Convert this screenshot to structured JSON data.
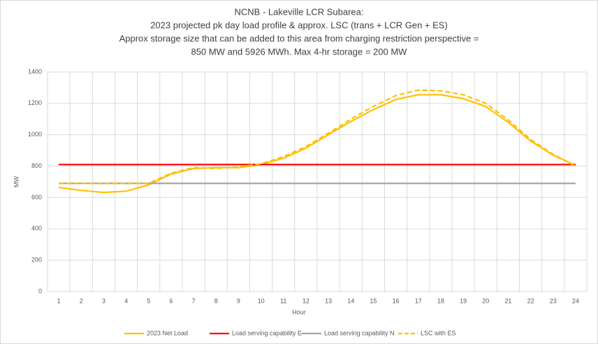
{
  "chart_data": {
    "type": "line",
    "title": [
      "NCNB - Lakeville LCR Subarea:",
      "2023 projected pk day load profile & approx. LSC (trans + LCR Gen + ES)",
      "Approx storage size that can be added to this area from charging restriction perspective =",
      "850 MW and 5926 MWh. Max 4-hr storage = 200 MW"
    ],
    "x_label": "Hour",
    "y_label": "MW",
    "categories": [
      "1",
      "2",
      "3",
      "4",
      "5",
      "6",
      "7",
      "8",
      "9",
      "10",
      "11",
      "12",
      "13",
      "14",
      "15",
      "16",
      "17",
      "18",
      "19",
      "20",
      "21",
      "22",
      "23",
      "24"
    ],
    "series": [
      {
        "name": "2023 Net Load",
        "color": "#FFC000",
        "dashed": false,
        "values": [
          664,
          645,
          632,
          640,
          680,
          750,
          785,
          790,
          790,
          810,
          850,
          915,
          1000,
          1085,
          1160,
          1225,
          1255,
          1255,
          1230,
          1180,
          1080,
          960,
          870,
          805
        ]
      },
      {
        "name": "Load serving capability E",
        "color": "#FF0000",
        "dashed": false,
        "values": [
          810,
          810,
          810,
          810,
          810,
          810,
          810,
          810,
          810,
          810,
          810,
          810,
          810,
          810,
          810,
          810,
          810,
          810,
          810,
          810,
          810,
          810,
          810,
          810
        ]
      },
      {
        "name": "Load serving capability N",
        "color": "#A5A5A5",
        "dashed": false,
        "values": [
          690,
          690,
          690,
          690,
          690,
          690,
          690,
          690,
          690,
          690,
          690,
          690,
          690,
          690,
          690,
          690,
          690,
          690,
          690,
          690,
          690,
          690,
          690,
          690
        ]
      },
      {
        "name": "LSC with ES",
        "color": "#FFC000",
        "dashed": true,
        "values": [
          690,
          690,
          690,
          690,
          690,
          755,
          790,
          785,
          795,
          815,
          860,
          925,
          1010,
          1100,
          1180,
          1250,
          1285,
          1280,
          1255,
          1200,
          1095,
          970,
          875,
          800
        ]
      }
    ],
    "ylim": [
      0,
      1400
    ],
    "yticks": [
      0,
      200,
      400,
      600,
      800,
      1000,
      1200,
      1400
    ],
    "grid": true,
    "legend": "bottom"
  }
}
